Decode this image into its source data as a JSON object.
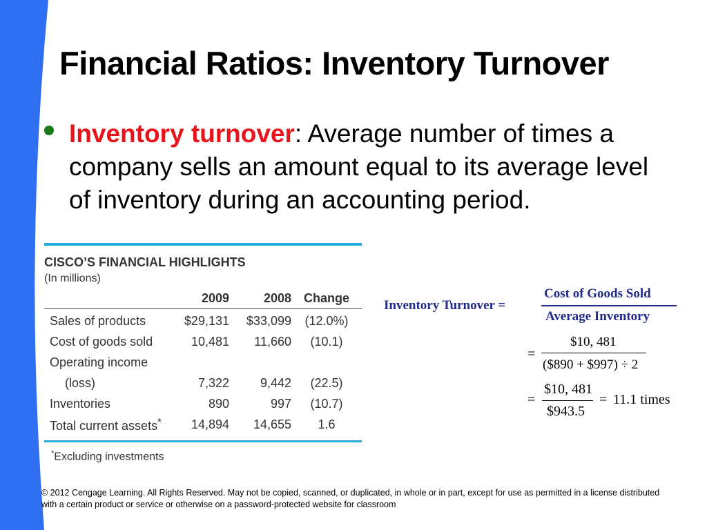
{
  "slide": {
    "title": "Financial Ratios: Inventory Turnover",
    "bullet": {
      "term": "Inventory turnover",
      "separator": ":",
      "definition": " Average number of times a company sells an amount equal to its average level of inventory during an accounting period."
    },
    "accent_color": "#2f6ff2",
    "term_color": "#e8141b",
    "bullet_color": "#1a7a1a"
  },
  "table": {
    "title": "CISCO’S FINANCIAL HIGHLIGHTS",
    "subtitle": "(In millions)",
    "columns": [
      "",
      "2009",
      "2008",
      "Change"
    ],
    "rows": [
      {
        "label": "Sales of products",
        "y2009": "$29,131",
        "y2008": "$33,099",
        "change": "(12.0%)"
      },
      {
        "label": "Cost of goods sold",
        "y2009": "10,481",
        "y2008": "11,660",
        "change": "(10.1)"
      },
      {
        "label": "Operating income",
        "y2009": "",
        "y2008": "",
        "change": ""
      },
      {
        "label": "(loss)",
        "y2009": "7,322",
        "y2008": "9,442",
        "change": "(22.5)"
      },
      {
        "label": "Inventories",
        "y2009": "890",
        "y2008": "997",
        "change": "(10.7)"
      },
      {
        "label": "Total current assets",
        "label_mark": "*",
        "y2009": "14,894",
        "y2008": "14,655",
        "change": "1.6"
      }
    ],
    "footnote_mark": "*",
    "footnote": "Excluding investments",
    "rule_color": "#27a9e1"
  },
  "formula": {
    "label": "Inventory Turnover =",
    "numerator": "Cost of Goods Sold",
    "denominator": "Average Inventory",
    "step1_eq": "=",
    "step1_num": "$10, 481",
    "step1_den": "($890 + $997) ÷ 2",
    "step2_eq": "=",
    "step2_num": "$10, 481",
    "step2_den": "$943.5",
    "result_eq": "=",
    "result": "11.1 times"
  },
  "copyright": "© 2012 Cengage Learning. All Rights Reserved. May not be copied, scanned, or duplicated, in whole or in part, except for use as permitted in a license distributed with a certain product or service or otherwise on a password-protected website for classroom"
}
